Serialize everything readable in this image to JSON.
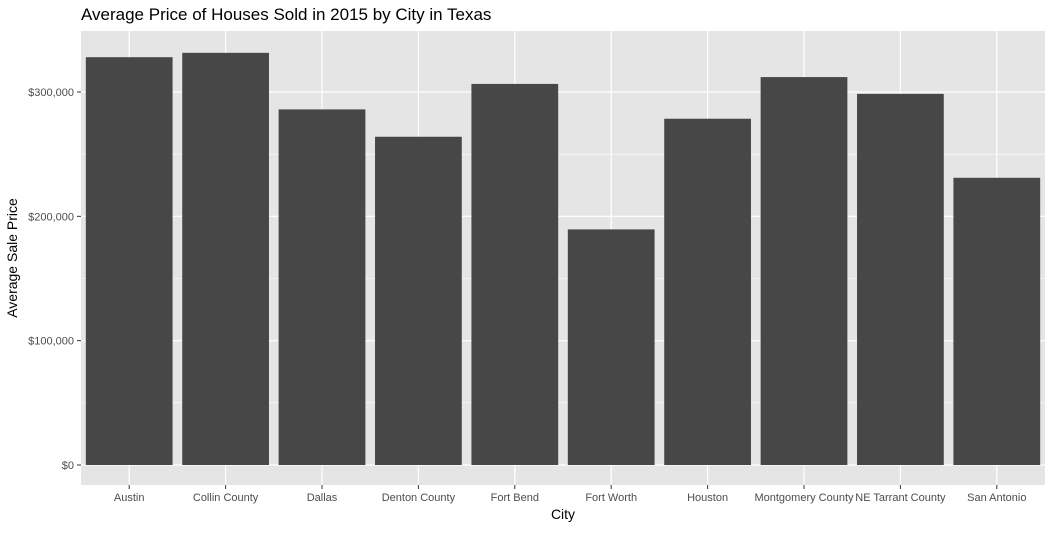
{
  "chart_data": {
    "type": "bar",
    "title": "Average Price of Houses Sold in 2015 by City in Texas",
    "xlabel": "City",
    "ylabel": "Average Sale Price",
    "categories": [
      "Austin",
      "Collin County",
      "Dallas",
      "Denton County",
      "Fort Bend",
      "Fort Worth",
      "Houston",
      "Montgomery County",
      "NE Tarrant County",
      "San Antonio"
    ],
    "values": [
      328000,
      331500,
      286000,
      264000,
      306500,
      189500,
      278500,
      312000,
      298500,
      231000
    ],
    "ylim": [
      0,
      348000
    ],
    "yticks": [
      0,
      100000,
      200000,
      300000
    ],
    "ytick_labels": [
      "$0",
      "$100,000",
      "$200,000",
      "$300,000"
    ],
    "grid": true,
    "colors": {
      "panel": "#e5e5e5",
      "gridline": "#ffffff",
      "bar": "#474747",
      "text": "#000000",
      "tick_text": "#4d4d4d"
    }
  }
}
